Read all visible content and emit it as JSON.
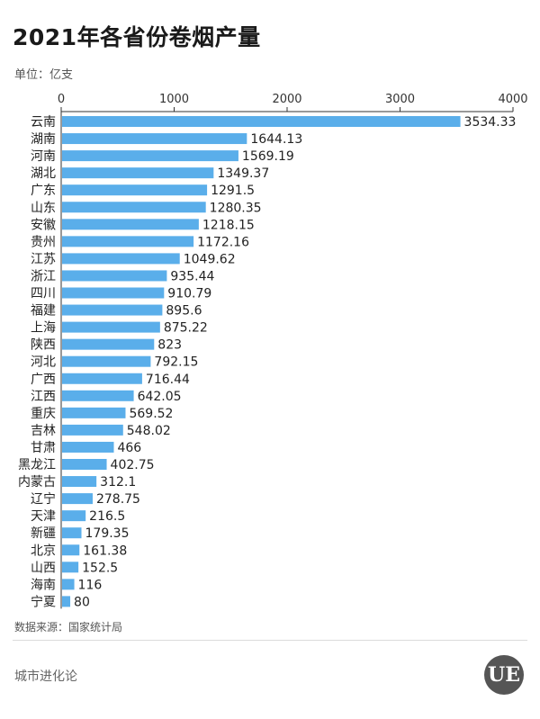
{
  "header": {
    "title": "2021年各省份卷烟产量",
    "unit": "单位：亿支"
  },
  "footer": {
    "source": "数据来源：国家统计局",
    "brand": "城市进化论",
    "logo_text": "UE"
  },
  "colors": {
    "bar": "#5aaeea",
    "axis": "#333333",
    "gridline": "#e6e6e6"
  },
  "chart_data": {
    "type": "bar",
    "orientation": "horizontal",
    "title": "2021年各省份卷烟产量",
    "xlabel": "",
    "ylabel": "",
    "unit": "亿支",
    "xlim": [
      0,
      4000
    ],
    "ticks": [
      0,
      1000,
      2000,
      3000,
      4000
    ],
    "x_axis_position": "top",
    "grid": false,
    "categories": [
      "云南",
      "湖南",
      "河南",
      "湖北",
      "广东",
      "山东",
      "安徽",
      "贵州",
      "江苏",
      "浙江",
      "四川",
      "福建",
      "上海",
      "陕西",
      "河北",
      "广西",
      "江西",
      "重庆",
      "吉林",
      "甘肃",
      "黑龙江",
      "内蒙古",
      "辽宁",
      "天津",
      "新疆",
      "北京",
      "山西",
      "海南",
      "宁夏"
    ],
    "values": [
      3534.33,
      1644.13,
      1569.19,
      1349.37,
      1291.5,
      1280.35,
      1218.15,
      1172.16,
      1049.62,
      935.44,
      910.79,
      895.6,
      875.22,
      823,
      792.15,
      716.44,
      642.05,
      569.52,
      548.02,
      466,
      402.75,
      312.1,
      278.75,
      216.5,
      179.35,
      161.38,
      152.5,
      116,
      80
    ],
    "value_labels": [
      "3534.33",
      "1644.13",
      "1569.19",
      "1349.37",
      "1291.5",
      "1280.35",
      "1218.15",
      "1172.16",
      "1049.62",
      "935.44",
      "910.79",
      "895.6",
      "875.22",
      "823",
      "792.15",
      "716.44",
      "642.05",
      "569.52",
      "548.02",
      "466",
      "402.75",
      "312.1",
      "278.75",
      "216.5",
      "179.35",
      "161.38",
      "152.5",
      "116",
      "80"
    ]
  }
}
